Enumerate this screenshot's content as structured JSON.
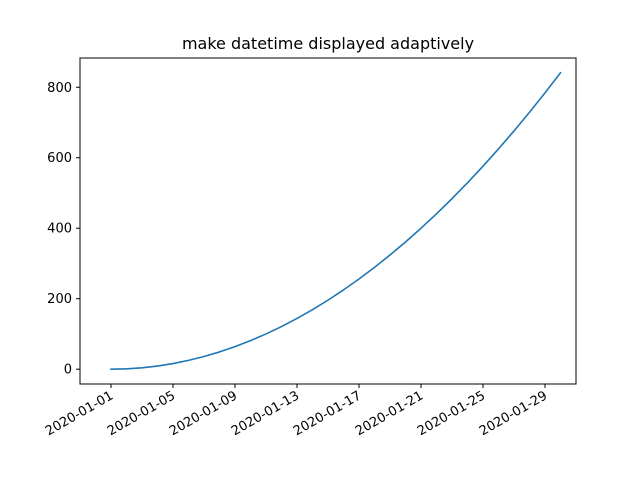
{
  "chart_data": {
    "type": "line",
    "title": "make datetime displayed adaptively",
    "xlabel": "",
    "ylabel": "",
    "x": [
      "2020-01-01",
      "2020-01-02",
      "2020-01-03",
      "2020-01-04",
      "2020-01-05",
      "2020-01-06",
      "2020-01-07",
      "2020-01-08",
      "2020-01-09",
      "2020-01-10",
      "2020-01-11",
      "2020-01-12",
      "2020-01-13",
      "2020-01-14",
      "2020-01-15",
      "2020-01-16",
      "2020-01-17",
      "2020-01-18",
      "2020-01-19",
      "2020-01-20",
      "2020-01-21",
      "2020-01-22",
      "2020-01-23",
      "2020-01-24",
      "2020-01-25",
      "2020-01-26",
      "2020-01-27",
      "2020-01-28",
      "2020-01-29",
      "2020-01-30"
    ],
    "series": [
      {
        "color": "#1f77b4",
        "values": [
          0,
          1,
          4,
          9,
          16,
          25,
          36,
          49,
          64,
          81,
          100,
          121,
          144,
          169,
          196,
          225,
          256,
          289,
          324,
          361,
          400,
          441,
          484,
          529,
          576,
          625,
          676,
          729,
          784,
          841
        ]
      }
    ],
    "xlim": [
      "2019-12-30",
      "2020-01-31"
    ],
    "ylim": [
      -42,
      883
    ],
    "xticks": [
      "2020-01-01",
      "2020-01-05",
      "2020-01-09",
      "2020-01-13",
      "2020-01-17",
      "2020-01-21",
      "2020-01-25",
      "2020-01-29"
    ],
    "yticks": [
      0,
      200,
      400,
      600,
      800
    ],
    "grid": false,
    "legend": "none"
  }
}
